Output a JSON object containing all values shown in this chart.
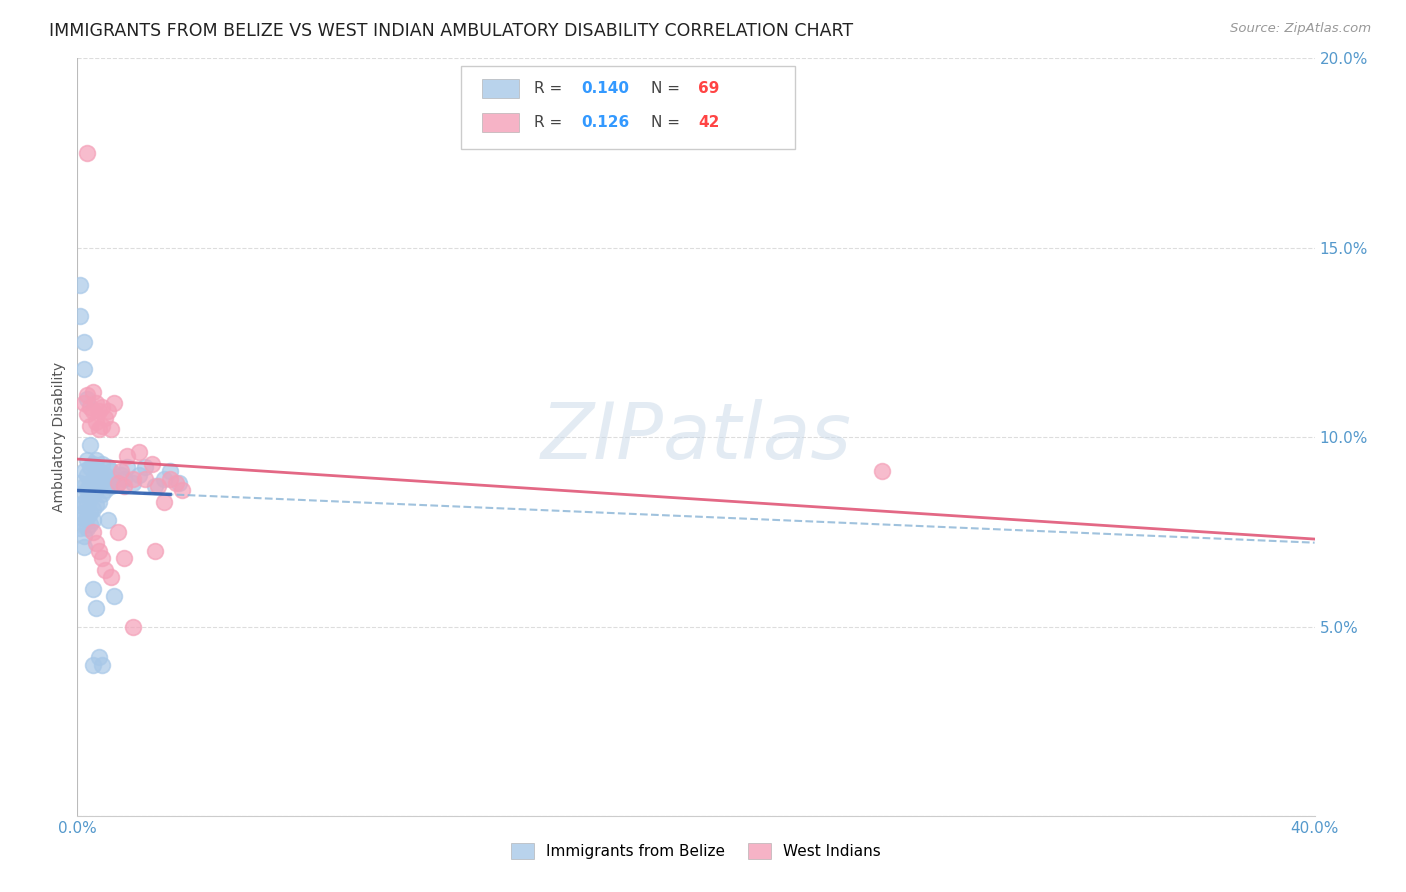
{
  "title": "IMMIGRANTS FROM BELIZE VS WEST INDIAN AMBULATORY DISABILITY CORRELATION CHART",
  "source": "Source: ZipAtlas.com",
  "ylabel": "Ambulatory Disability",
  "xlim": [
    0.0,
    0.4
  ],
  "ylim": [
    0.0,
    0.2
  ],
  "xticks": [
    0.0,
    0.08,
    0.16,
    0.24,
    0.32,
    0.4
  ],
  "xticklabels": [
    "0.0%",
    "",
    "",
    "",
    "",
    "40.0%"
  ],
  "yticks": [
    0.0,
    0.05,
    0.1,
    0.15,
    0.2
  ],
  "yticklabels_right": [
    "",
    "5.0%",
    "10.0%",
    "15.0%",
    "20.0%"
  ],
  "belize_color": "#a8c8e8",
  "westindian_color": "#f4a0b8",
  "belize_line_solid_color": "#3060b0",
  "belize_line_dash_color": "#90b8d8",
  "westindian_line_color": "#e05878",
  "background_color": "#ffffff",
  "grid_color": "#dddddd",
  "tick_color": "#5599cc",
  "belize_x": [
    0.001,
    0.001,
    0.001,
    0.001,
    0.001,
    0.002,
    0.002,
    0.002,
    0.002,
    0.002,
    0.002,
    0.002,
    0.003,
    0.003,
    0.003,
    0.003,
    0.003,
    0.003,
    0.004,
    0.004,
    0.004,
    0.004,
    0.004,
    0.005,
    0.005,
    0.005,
    0.005,
    0.005,
    0.006,
    0.006,
    0.006,
    0.006,
    0.007,
    0.007,
    0.007,
    0.008,
    0.008,
    0.008,
    0.009,
    0.009,
    0.01,
    0.01,
    0.011,
    0.011,
    0.012,
    0.013,
    0.014,
    0.015,
    0.016,
    0.018,
    0.02,
    0.022,
    0.025,
    0.028,
    0.03,
    0.033,
    0.001,
    0.001,
    0.002,
    0.002,
    0.003,
    0.004,
    0.005,
    0.006,
    0.007,
    0.008,
    0.01,
    0.012,
    0.005
  ],
  "belize_y": [
    0.085,
    0.088,
    0.082,
    0.079,
    0.076,
    0.091,
    0.087,
    0.083,
    0.08,
    0.077,
    0.074,
    0.071,
    0.094,
    0.09,
    0.086,
    0.082,
    0.079,
    0.076,
    0.092,
    0.088,
    0.084,
    0.08,
    0.077,
    0.093,
    0.089,
    0.085,
    0.081,
    0.078,
    0.094,
    0.09,
    0.086,
    0.082,
    0.091,
    0.087,
    0.083,
    0.093,
    0.089,
    0.085,
    0.09,
    0.086,
    0.092,
    0.088,
    0.091,
    0.087,
    0.089,
    0.088,
    0.09,
    0.089,
    0.092,
    0.088,
    0.09,
    0.092,
    0.087,
    0.089,
    0.091,
    0.088,
    0.14,
    0.132,
    0.125,
    0.118,
    0.11,
    0.098,
    0.06,
    0.055,
    0.042,
    0.04,
    0.078,
    0.058,
    0.04
  ],
  "westindian_x": [
    0.002,
    0.003,
    0.003,
    0.004,
    0.004,
    0.005,
    0.005,
    0.006,
    0.006,
    0.007,
    0.007,
    0.008,
    0.008,
    0.009,
    0.01,
    0.011,
    0.012,
    0.013,
    0.014,
    0.015,
    0.016,
    0.018,
    0.02,
    0.022,
    0.024,
    0.026,
    0.028,
    0.03,
    0.032,
    0.034,
    0.003,
    0.005,
    0.006,
    0.007,
    0.008,
    0.009,
    0.011,
    0.013,
    0.015,
    0.018,
    0.025,
    0.26
  ],
  "westindian_y": [
    0.109,
    0.111,
    0.106,
    0.108,
    0.103,
    0.112,
    0.107,
    0.109,
    0.104,
    0.107,
    0.102,
    0.108,
    0.103,
    0.105,
    0.107,
    0.102,
    0.109,
    0.088,
    0.091,
    0.087,
    0.095,
    0.089,
    0.096,
    0.089,
    0.093,
    0.087,
    0.083,
    0.089,
    0.088,
    0.086,
    0.175,
    0.075,
    0.072,
    0.07,
    0.068,
    0.065,
    0.063,
    0.075,
    0.068,
    0.05,
    0.07,
    0.091
  ],
  "legend_R1": "0.140",
  "legend_N1": "69",
  "legend_R2": "0.126",
  "legend_N2": "42",
  "label1": "Immigrants from Belize",
  "label2": "West Indians"
}
